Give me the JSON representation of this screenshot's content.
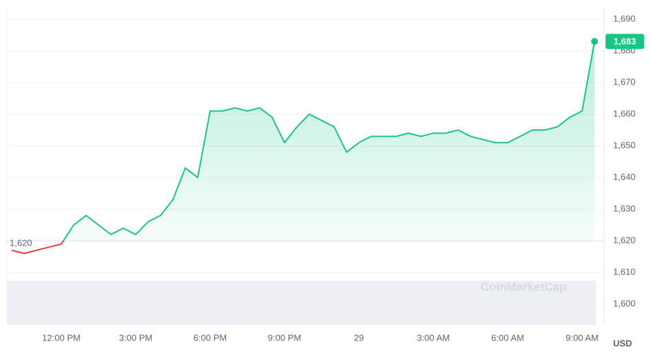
{
  "chart_data": {
    "type": "line",
    "categories": [
      null,
      null,
      null,
      null,
      "12:00 PM",
      null,
      null,
      null,
      null,
      null,
      "3:00 PM",
      null,
      null,
      null,
      null,
      null,
      "6:00 PM",
      null,
      null,
      null,
      null,
      null,
      "9:00 PM",
      null,
      null,
      null,
      null,
      null,
      "29",
      null,
      null,
      null,
      null,
      null,
      "3:00 AM",
      null,
      null,
      null,
      null,
      null,
      "6:00 AM",
      null,
      null,
      null,
      null,
      null,
      "9:00 AM",
      null
    ],
    "series": [
      {
        "name": null,
        "color": "#16c784",
        "below_color": "#ea3943",
        "values": [
          1617,
          1616,
          1617,
          1618,
          1619,
          1625,
          1628,
          1625,
          1622,
          1624,
          1622,
          1626,
          1628,
          1633,
          1643,
          1640,
          1661,
          1661,
          1662,
          1661,
          1662,
          1659,
          1651,
          1656,
          1660,
          1658,
          1656,
          1648,
          1651,
          1653,
          1653,
          1653,
          1654,
          1653,
          1654,
          1654,
          1655,
          1653,
          1652,
          1651,
          1651,
          1653,
          1655,
          1655,
          1656,
          1659,
          1661,
          1683
        ],
        "value_labels": [
          null,
          null,
          null,
          null,
          null,
          null,
          null,
          null,
          null,
          null,
          null,
          null,
          null,
          null,
          null,
          null,
          null,
          null,
          null,
          null,
          null,
          null,
          null,
          null,
          null,
          null,
          null,
          null,
          null,
          null,
          null,
          null,
          null,
          null,
          null,
          null,
          null,
          null,
          null,
          null,
          null,
          null,
          null,
          null,
          null,
          null,
          null,
          "1,683"
        ]
      }
    ],
    "baseline": {
      "value": 1620,
      "label": "1,620"
    },
    "ylim": [
      1600,
      1690
    ],
    "yticks": [
      {
        "value": 1600,
        "label": "1,600"
      },
      {
        "value": 1610,
        "label": "1,610"
      },
      {
        "value": 1620,
        "label": "1,620"
      },
      {
        "value": 1630,
        "label": "1,630"
      },
      {
        "value": 1640,
        "label": "1,640"
      },
      {
        "value": 1650,
        "label": "1,650"
      },
      {
        "value": 1660,
        "label": "1,660"
      },
      {
        "value": 1670,
        "label": "1,670"
      },
      {
        "value": 1680,
        "label": "1,680"
      },
      {
        "value": 1690,
        "label": "1,690"
      }
    ],
    "grid": true,
    "currency": "USD",
    "watermark": "CoinMarketCap"
  }
}
